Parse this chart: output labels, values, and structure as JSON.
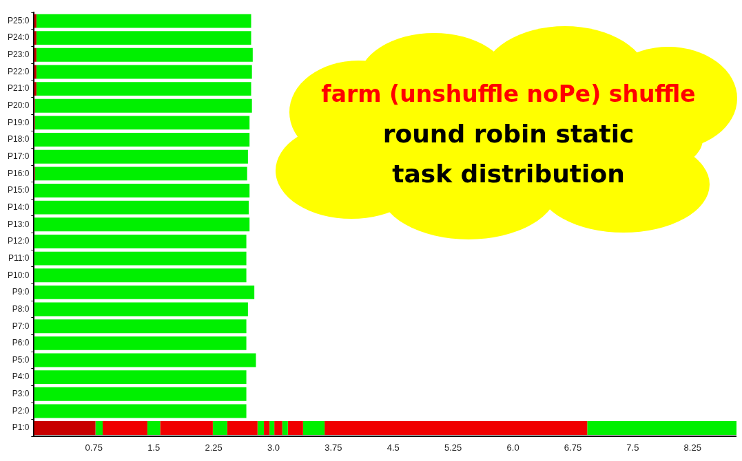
{
  "chart_data": {
    "type": "bar",
    "orientation": "horizontal",
    "stacked": true,
    "categories": [
      "P25:0",
      "P24:0",
      "P23:0",
      "P22:0",
      "P21:0",
      "P20:0",
      "P19:0",
      "P18:0",
      "P17:0",
      "P16:0",
      "P15:0",
      "P14:0",
      "P13:0",
      "P12:0",
      "P11:0",
      "P10:0",
      "P9:0",
      "P8:0",
      "P7:0",
      "P6:0",
      "P5:0",
      "P4:0",
      "P3:0",
      "P2:0",
      "P1:0"
    ],
    "series": [
      {
        "color": "#c80000",
        "values": [
          0.03,
          0.03,
          0.03,
          0.03,
          0.03,
          0.01,
          0.01,
          null,
          null,
          0.01,
          null,
          null,
          null,
          null,
          null,
          null,
          null,
          null,
          null,
          null,
          null,
          null,
          null,
          null,
          0.77
        ]
      },
      {
        "color": "#00f000",
        "values": [
          2.69,
          2.69,
          2.71,
          2.7,
          2.69,
          2.72,
          2.69,
          2.7,
          2.68,
          2.66,
          2.7,
          2.69,
          2.7,
          2.66,
          2.66,
          2.66,
          2.76,
          2.68,
          2.66,
          2.66,
          2.78,
          2.66,
          2.66,
          2.66,
          0.09
        ]
      },
      {
        "color": "#f00000",
        "values": [
          null,
          null,
          null,
          null,
          null,
          null,
          null,
          null,
          null,
          null,
          null,
          null,
          null,
          null,
          null,
          null,
          null,
          null,
          null,
          null,
          null,
          null,
          null,
          null,
          0.56
        ]
      },
      {
        "color": "#00f000",
        "values": [
          null,
          null,
          null,
          null,
          null,
          null,
          null,
          null,
          null,
          null,
          null,
          null,
          null,
          null,
          null,
          null,
          null,
          null,
          null,
          null,
          null,
          null,
          null,
          null,
          0.16
        ]
      },
      {
        "color": "#f00000",
        "values": [
          null,
          null,
          null,
          null,
          null,
          null,
          null,
          null,
          null,
          null,
          null,
          null,
          null,
          null,
          null,
          null,
          null,
          null,
          null,
          null,
          null,
          null,
          null,
          null,
          0.66
        ]
      },
      {
        "color": "#00f000",
        "values": [
          null,
          null,
          null,
          null,
          null,
          null,
          null,
          null,
          null,
          null,
          null,
          null,
          null,
          null,
          null,
          null,
          null,
          null,
          null,
          null,
          null,
          null,
          null,
          null,
          0.18
        ]
      },
      {
        "color": "#f00000",
        "values": [
          null,
          null,
          null,
          null,
          null,
          null,
          null,
          null,
          null,
          null,
          null,
          null,
          null,
          null,
          null,
          null,
          null,
          null,
          null,
          null,
          null,
          null,
          null,
          null,
          0.38
        ]
      },
      {
        "color": "#00f000",
        "values": [
          null,
          null,
          null,
          null,
          null,
          null,
          null,
          null,
          null,
          null,
          null,
          null,
          null,
          null,
          null,
          null,
          null,
          null,
          null,
          null,
          null,
          null,
          null,
          null,
          0.08
        ]
      },
      {
        "color": "#f00000",
        "values": [
          null,
          null,
          null,
          null,
          null,
          null,
          null,
          null,
          null,
          null,
          null,
          null,
          null,
          null,
          null,
          null,
          null,
          null,
          null,
          null,
          null,
          null,
          null,
          null,
          0.07
        ]
      },
      {
        "color": "#00f000",
        "values": [
          null,
          null,
          null,
          null,
          null,
          null,
          null,
          null,
          null,
          null,
          null,
          null,
          null,
          null,
          null,
          null,
          null,
          null,
          null,
          null,
          null,
          null,
          null,
          null,
          0.06
        ]
      },
      {
        "color": "#f00000",
        "values": [
          null,
          null,
          null,
          null,
          null,
          null,
          null,
          null,
          null,
          null,
          null,
          null,
          null,
          null,
          null,
          null,
          null,
          null,
          null,
          null,
          null,
          null,
          null,
          null,
          0.1
        ]
      },
      {
        "color": "#00f000",
        "values": [
          null,
          null,
          null,
          null,
          null,
          null,
          null,
          null,
          null,
          null,
          null,
          null,
          null,
          null,
          null,
          null,
          null,
          null,
          null,
          null,
          null,
          null,
          null,
          null,
          0.07
        ]
      },
      {
        "color": "#f00000",
        "values": [
          null,
          null,
          null,
          null,
          null,
          null,
          null,
          null,
          null,
          null,
          null,
          null,
          null,
          null,
          null,
          null,
          null,
          null,
          null,
          null,
          null,
          null,
          null,
          null,
          0.19
        ]
      },
      {
        "color": "#00f000",
        "values": [
          null,
          null,
          null,
          null,
          null,
          null,
          null,
          null,
          null,
          null,
          null,
          null,
          null,
          null,
          null,
          null,
          null,
          null,
          null,
          null,
          null,
          null,
          null,
          null,
          0.27
        ]
      },
      {
        "color": "#f00000",
        "values": [
          null,
          null,
          null,
          null,
          null,
          null,
          null,
          null,
          null,
          null,
          null,
          null,
          null,
          null,
          null,
          null,
          null,
          null,
          null,
          null,
          null,
          null,
          null,
          null,
          3.29
        ]
      },
      {
        "color": "#00f000",
        "values": [
          null,
          null,
          null,
          null,
          null,
          null,
          null,
          null,
          null,
          null,
          null,
          null,
          null,
          null,
          null,
          null,
          null,
          null,
          null,
          null,
          null,
          null,
          null,
          null,
          1.87
        ]
      }
    ],
    "xlim": [
      0,
      8.8
    ],
    "xticks": [
      0.75,
      1.5,
      2.25,
      {
        "value": 3,
        "label": "3.0"
      },
      3.75,
      4.5,
      5.25,
      {
        "value": 6,
        "label": "6.0"
      },
      6.75,
      7.5,
      8.25
    ],
    "legend": false,
    "grid": false,
    "annotations": [
      "farm (unshuffle noPe) shuffle",
      "round robin static",
      "task distribution"
    ]
  }
}
